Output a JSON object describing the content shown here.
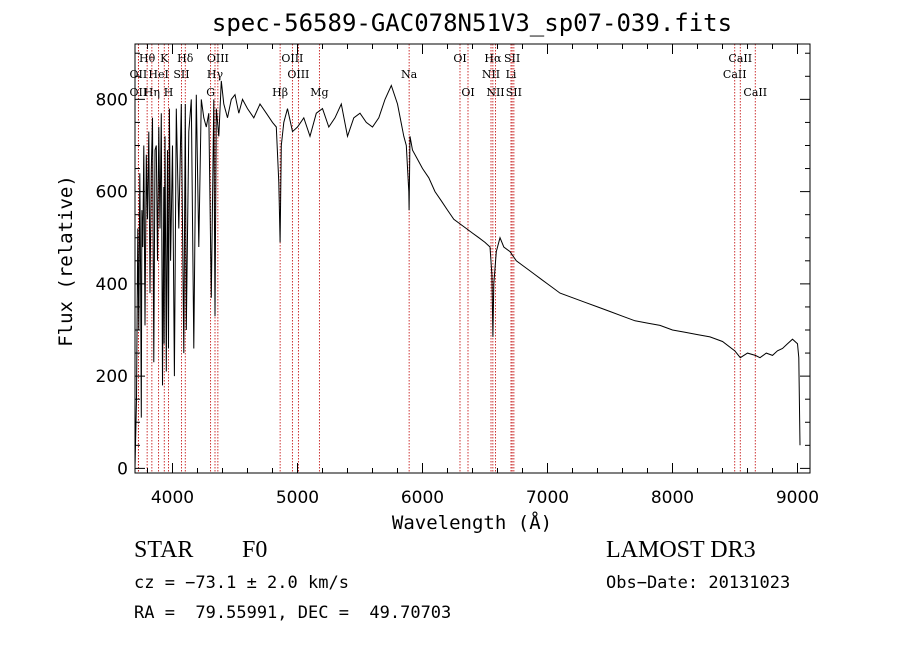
{
  "chart_data": {
    "type": "line",
    "title": "spec-56589-GAC078N51V3_sp07-039.fits",
    "xlabel": "Wavelength (Å)",
    "ylabel": "Flux (relative)",
    "xlim": [
      3700,
      9100
    ],
    "ylim": [
      -10,
      920
    ],
    "xticks": [
      4000,
      5000,
      6000,
      7000,
      8000,
      9000
    ],
    "yticks": [
      0,
      200,
      400,
      600,
      800
    ],
    "series": [
      {
        "name": "flux",
        "x": [
          3700,
          3712,
          3722,
          3730,
          3738,
          3745,
          3750,
          3755,
          3762,
          3770,
          3780,
          3790,
          3800,
          3810,
          3820,
          3830,
          3840,
          3850,
          3860,
          3870,
          3880,
          3890,
          3900,
          3910,
          3920,
          3930,
          3933,
          3940,
          3950,
          3960,
          3968,
          3975,
          3985,
          4000,
          4015,
          4030,
          4050,
          4070,
          4090,
          4102,
          4110,
          4130,
          4150,
          4170,
          4190,
          4210,
          4230,
          4250,
          4270,
          4290,
          4310,
          4330,
          4340,
          4350,
          4370,
          4390,
          4410,
          4440,
          4470,
          4500,
          4530,
          4560,
          4600,
          4650,
          4700,
          4750,
          4800,
          4830,
          4850,
          4861,
          4870,
          4890,
          4920,
          4960,
          5000,
          5050,
          5100,
          5150,
          5200,
          5250,
          5300,
          5350,
          5400,
          5450,
          5500,
          5550,
          5600,
          5650,
          5700,
          5750,
          5800,
          5850,
          5870,
          5890,
          5893,
          5900,
          5920,
          5960,
          6000,
          6050,
          6100,
          6150,
          6200,
          6250,
          6300,
          6350,
          6400,
          6450,
          6500,
          6540,
          6555,
          6563,
          6570,
          6590,
          6620,
          6650,
          6700,
          6750,
          6800,
          6850,
          6900,
          6950,
          7000,
          7050,
          7100,
          7200,
          7300,
          7400,
          7500,
          7600,
          7700,
          7800,
          7900,
          8000,
          8100,
          8200,
          8300,
          8400,
          8498,
          8542,
          8600,
          8662,
          8700,
          8750,
          8800,
          8840,
          8880,
          8920,
          8960,
          9000,
          9010,
          9020
        ],
        "values": [
          0,
          150,
          520,
          300,
          640,
          420,
          110,
          560,
          480,
          700,
          310,
          680,
          540,
          730,
          380,
          650,
          760,
          230,
          690,
          700,
          450,
          740,
          520,
          770,
          180,
          610,
          270,
          720,
          210,
          690,
          260,
          780,
          450,
          700,
          200,
          780,
          520,
          790,
          250,
          790,
          300,
          730,
          800,
          260,
          810,
          480,
          800,
          760,
          740,
          770,
          370,
          800,
          330,
          780,
          720,
          840,
          790,
          760,
          800,
          810,
          770,
          800,
          780,
          760,
          790,
          770,
          750,
          740,
          620,
          490,
          700,
          750,
          780,
          730,
          740,
          760,
          720,
          770,
          780,
          740,
          760,
          790,
          720,
          760,
          770,
          750,
          740,
          760,
          800,
          830,
          790,
          720,
          700,
          600,
          560,
          720,
          690,
          670,
          650,
          630,
          600,
          580,
          560,
          540,
          530,
          520,
          510,
          500,
          490,
          480,
          420,
          285,
          400,
          470,
          500,
          480,
          470,
          450,
          440,
          430,
          420,
          410,
          400,
          390,
          380,
          370,
          360,
          350,
          340,
          330,
          320,
          315,
          310,
          300,
          295,
          290,
          285,
          275,
          255,
          240,
          250,
          245,
          240,
          250,
          245,
          255,
          260,
          270,
          280,
          270,
          240,
          50
        ]
      }
    ],
    "lines": [
      {
        "name": "OII",
        "wave": 3727,
        "row": 2
      },
      {
        "name": "OII",
        "wave": 3727,
        "row": 3
      },
      {
        "name": "Hθ",
        "wave": 3797,
        "row": 1
      },
      {
        "name": "Hη",
        "wave": 3835,
        "row": 3
      },
      {
        "name": "HeI",
        "wave": 3889,
        "row": 2
      },
      {
        "name": "K",
        "wave": 3934,
        "row": 1
      },
      {
        "name": "H",
        "wave": 3968,
        "row": 3
      },
      {
        "name": "SII",
        "wave": 4072,
        "row": 2
      },
      {
        "name": "Hδ",
        "wave": 4102,
        "row": 1
      },
      {
        "name": "G",
        "wave": 4305,
        "row": 3
      },
      {
        "name": "OIII",
        "wave": 4363,
        "row": 1
      },
      {
        "name": "Hγ",
        "wave": 4340,
        "row": 2
      },
      {
        "name": "Hβ",
        "wave": 4861,
        "row": 3
      },
      {
        "name": "OIII",
        "wave": 4959,
        "row": 1
      },
      {
        "name": "OIII",
        "wave": 5007,
        "row": 2
      },
      {
        "name": "Mg",
        "wave": 5175,
        "row": 3
      },
      {
        "name": "Na",
        "wave": 5893,
        "row": 2
      },
      {
        "name": "OI",
        "wave": 6300,
        "row": 1
      },
      {
        "name": "OI",
        "wave": 6364,
        "row": 3
      },
      {
        "name": "Hα",
        "wave": 6563,
        "row": 1
      },
      {
        "name": "NII",
        "wave": 6548,
        "row": 2
      },
      {
        "name": "NII",
        "wave": 6584,
        "row": 3
      },
      {
        "name": "SII",
        "wave": 6717,
        "row": 1
      },
      {
        "name": "Li",
        "wave": 6708,
        "row": 2
      },
      {
        "name": "SII",
        "wave": 6731,
        "row": 3
      },
      {
        "name": "CaII",
        "wave": 8542,
        "row": 1
      },
      {
        "name": "CaII",
        "wave": 8498,
        "row": 2
      },
      {
        "name": "CaII",
        "wave": 8662,
        "row": 3
      }
    ]
  },
  "colors": {
    "spectrum": "#000000",
    "line_markers": "#c00000",
    "axes": "#000000"
  },
  "info": {
    "object_type": "STAR",
    "subclass": "F0",
    "survey": "LAMOST DR3",
    "cz": "cz = −73.1 ± 2.0 km/s",
    "obs_date": "Obs−Date: 20131023",
    "coords": "RA =  79.55991, DEC =  49.70703"
  }
}
